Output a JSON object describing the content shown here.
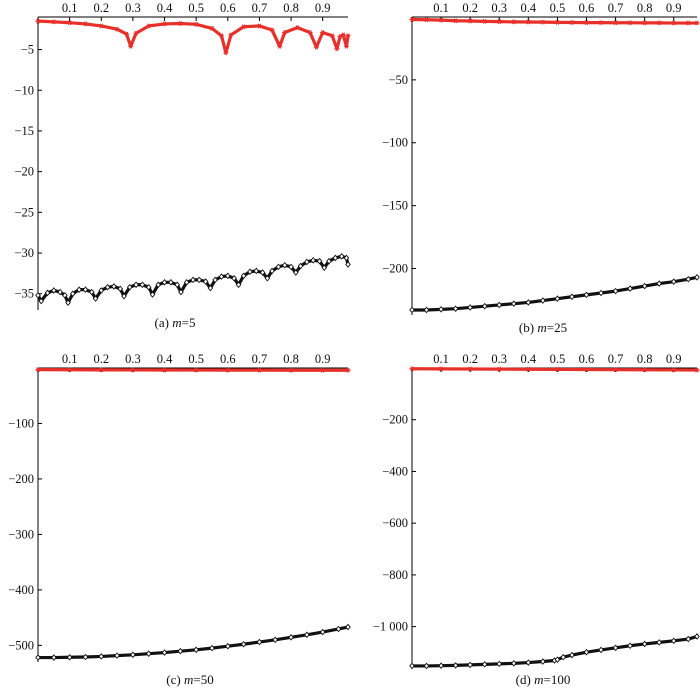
{
  "figure": {
    "colors": {
      "upper_series": "#e8302a",
      "lower_series": "#111111",
      "axis": "#000000"
    }
  },
  "chart_data": [
    {
      "type": "scatter",
      "caption_prefix": "(a) ",
      "caption_var": "m",
      "caption_value": "=5",
      "xlim": [
        0,
        0.98
      ],
      "ylim": [
        -37,
        -1
      ],
      "xticks": [
        0.1,
        0.2,
        0.3,
        0.4,
        0.5,
        0.6,
        0.7,
        0.8,
        0.9
      ],
      "xtick_labels": [
        "0.1",
        "0.2",
        "0.3",
        "0.4",
        "0.5",
        "0.6",
        "0.7",
        "0.8",
        "0.9"
      ],
      "yticks": [
        -5,
        -10,
        -15,
        -20,
        -25,
        -30,
        -35
      ],
      "ytick_labels": [
        "−5",
        "−10",
        "−15",
        "−20",
        "−25",
        "−30",
        "−35"
      ],
      "x_axis_position": "top",
      "series": [
        {
          "color": "#e8302a",
          "marker": "star",
          "points": [
            [
              0,
              -1.5
            ],
            [
              0.05,
              -1.6
            ],
            [
              0.1,
              -1.7
            ],
            [
              0.15,
              -1.85
            ],
            [
              0.2,
              -2.1
            ],
            [
              0.25,
              -2.5
            ],
            [
              0.28,
              -3.1
            ],
            [
              0.293,
              -4.6
            ],
            [
              0.31,
              -3.0
            ],
            [
              0.35,
              -2.1
            ],
            [
              0.4,
              -1.85
            ],
            [
              0.45,
              -1.8
            ],
            [
              0.5,
              -1.9
            ],
            [
              0.55,
              -2.4
            ],
            [
              0.58,
              -3.3
            ],
            [
              0.594,
              -5.4
            ],
            [
              0.61,
              -3.2
            ],
            [
              0.65,
              -2.2
            ],
            [
              0.7,
              -2.1
            ],
            [
              0.74,
              -2.6
            ],
            [
              0.764,
              -4.6
            ],
            [
              0.78,
              -2.9
            ],
            [
              0.82,
              -2.3
            ],
            [
              0.86,
              -2.9
            ],
            [
              0.88,
              -4.7
            ],
            [
              0.9,
              -2.9
            ],
            [
              0.93,
              -3.3
            ],
            [
              0.945,
              -4.9
            ],
            [
              0.955,
              -3.4
            ],
            [
              0.965,
              -3.2
            ],
            [
              0.975,
              -4.6
            ],
            [
              0.98,
              -3.3
            ]
          ]
        },
        {
          "color": "#111111",
          "marker": "diamond",
          "points": [
            [
              0,
              -35.2
            ],
            [
              0.01,
              -35.9
            ],
            [
              0.03,
              -34.9
            ],
            [
              0.05,
              -34.6
            ],
            [
              0.07,
              -34.8
            ],
            [
              0.085,
              -35.2
            ],
            [
              0.095,
              -36.1
            ],
            [
              0.11,
              -35.0
            ],
            [
              0.13,
              -34.5
            ],
            [
              0.15,
              -34.5
            ],
            [
              0.17,
              -34.8
            ],
            [
              0.182,
              -35.6
            ],
            [
              0.2,
              -34.6
            ],
            [
              0.22,
              -34.2
            ],
            [
              0.24,
              -34.1
            ],
            [
              0.26,
              -34.4
            ],
            [
              0.272,
              -35.3
            ],
            [
              0.29,
              -34.2
            ],
            [
              0.31,
              -33.9
            ],
            [
              0.33,
              -33.9
            ],
            [
              0.35,
              -34.2
            ],
            [
              0.362,
              -35.1
            ],
            [
              0.38,
              -33.9
            ],
            [
              0.4,
              -33.6
            ],
            [
              0.42,
              -33.6
            ],
            [
              0.44,
              -33.9
            ],
            [
              0.452,
              -34.8
            ],
            [
              0.47,
              -33.6
            ],
            [
              0.49,
              -33.3
            ],
            [
              0.51,
              -33.3
            ],
            [
              0.53,
              -33.5
            ],
            [
              0.545,
              -34.3
            ],
            [
              0.56,
              -33.3
            ],
            [
              0.58,
              -32.9
            ],
            [
              0.6,
              -32.8
            ],
            [
              0.62,
              -33.1
            ],
            [
              0.634,
              -33.9
            ],
            [
              0.65,
              -32.8
            ],
            [
              0.67,
              -32.3
            ],
            [
              0.69,
              -32.2
            ],
            [
              0.71,
              -32.4
            ],
            [
              0.725,
              -33.1
            ],
            [
              0.74,
              -32.2
            ],
            [
              0.76,
              -31.7
            ],
            [
              0.78,
              -31.5
            ],
            [
              0.8,
              -31.7
            ],
            [
              0.815,
              -32.4
            ],
            [
              0.83,
              -31.6
            ],
            [
              0.85,
              -31.1
            ],
            [
              0.87,
              -30.9
            ],
            [
              0.89,
              -31.0
            ],
            [
              0.905,
              -31.8
            ],
            [
              0.92,
              -31.0
            ],
            [
              0.94,
              -30.6
            ],
            [
              0.96,
              -30.4
            ],
            [
              0.975,
              -30.6
            ],
            [
              0.98,
              -31.4
            ]
          ]
        }
      ]
    },
    {
      "type": "scatter",
      "caption_prefix": "(b) ",
      "caption_var": "m",
      "caption_value": "=25",
      "xlim": [
        0,
        0.98
      ],
      "ylim": [
        -237,
        0
      ],
      "xticks": [
        0.1,
        0.2,
        0.3,
        0.4,
        0.5,
        0.6,
        0.7,
        0.8,
        0.9
      ],
      "xtick_labels": [
        "0.1",
        "0.2",
        "0.3",
        "0.4",
        "0.5",
        "0.6",
        "0.7",
        "0.8",
        "0.9"
      ],
      "yticks": [
        -50,
        -100,
        -150,
        -200
      ],
      "ytick_labels": [
        "−50",
        "−100",
        "−150",
        "−200"
      ],
      "x_axis_position": "top",
      "series": [
        {
          "color": "#e8302a",
          "marker": "star",
          "points": [
            [
              0,
              -2.0
            ],
            [
              0.05,
              -2.2
            ],
            [
              0.1,
              -2.5
            ],
            [
              0.15,
              -3.0
            ],
            [
              0.2,
              -3.2
            ],
            [
              0.25,
              -3.5
            ],
            [
              0.3,
              -3.7
            ],
            [
              0.35,
              -3.9
            ],
            [
              0.4,
              -4.0
            ],
            [
              0.45,
              -4.1
            ],
            [
              0.5,
              -4.3
            ],
            [
              0.55,
              -4.4
            ],
            [
              0.6,
              -4.5
            ],
            [
              0.65,
              -4.5
            ],
            [
              0.7,
              -4.6
            ],
            [
              0.75,
              -4.6
            ],
            [
              0.8,
              -4.7
            ],
            [
              0.85,
              -4.7
            ],
            [
              0.9,
              -4.8
            ],
            [
              0.95,
              -4.8
            ],
            [
              0.98,
              -4.8
            ]
          ]
        },
        {
          "color": "#111111",
          "marker": "diamond",
          "points": [
            [
              0,
              -233
            ],
            [
              0.05,
              -233
            ],
            [
              0.1,
              -232.5
            ],
            [
              0.15,
              -232
            ],
            [
              0.2,
              -231
            ],
            [
              0.25,
              -230
            ],
            [
              0.3,
              -229
            ],
            [
              0.35,
              -228
            ],
            [
              0.4,
              -227
            ],
            [
              0.45,
              -225.5
            ],
            [
              0.5,
              -224
            ],
            [
              0.55,
              -222.5
            ],
            [
              0.6,
              -221
            ],
            [
              0.65,
              -219.5
            ],
            [
              0.7,
              -218
            ],
            [
              0.75,
              -216
            ],
            [
              0.8,
              -214
            ],
            [
              0.85,
              -212
            ],
            [
              0.9,
              -210.5
            ],
            [
              0.95,
              -208.5
            ],
            [
              0.98,
              -207
            ]
          ]
        }
      ]
    },
    {
      "type": "scatter",
      "caption_prefix": "(c) ",
      "caption_var": "m",
      "caption_value": "=50",
      "xlim": [
        0,
        0.98
      ],
      "ylim": [
        -530,
        0
      ],
      "xticks": [
        0.1,
        0.2,
        0.3,
        0.4,
        0.5,
        0.6,
        0.7,
        0.8,
        0.9
      ],
      "xtick_labels": [
        "0.1",
        "0.2",
        "0.3",
        "0.4",
        "0.5",
        "0.6",
        "0.7",
        "0.8",
        "0.9"
      ],
      "yticks": [
        -100,
        -200,
        -300,
        -400,
        -500
      ],
      "ytick_labels": [
        "−100",
        "−200",
        "−300",
        "−400",
        "−500"
      ],
      "x_axis_position": "top",
      "series": [
        {
          "color": "#e8302a",
          "marker": "star",
          "points": [
            [
              0,
              -3.0
            ],
            [
              0.1,
              -3.2
            ],
            [
              0.2,
              -3.4
            ],
            [
              0.3,
              -3.5
            ],
            [
              0.4,
              -3.6
            ],
            [
              0.5,
              -3.7
            ],
            [
              0.6,
              -3.8
            ],
            [
              0.7,
              -3.9
            ],
            [
              0.8,
              -4.0
            ],
            [
              0.9,
              -4.0
            ],
            [
              0.98,
              -4.0
            ]
          ]
        },
        {
          "color": "#111111",
          "marker": "diamond",
          "points": [
            [
              0,
              -522
            ],
            [
              0.05,
              -522
            ],
            [
              0.1,
              -521.5
            ],
            [
              0.15,
              -521
            ],
            [
              0.2,
              -520
            ],
            [
              0.25,
              -518.5
            ],
            [
              0.3,
              -517
            ],
            [
              0.35,
              -515
            ],
            [
              0.4,
              -513
            ],
            [
              0.45,
              -510.5
            ],
            [
              0.5,
              -508
            ],
            [
              0.55,
              -505
            ],
            [
              0.6,
              -501.5
            ],
            [
              0.65,
              -498
            ],
            [
              0.7,
              -494
            ],
            [
              0.75,
              -490
            ],
            [
              0.8,
              -485.5
            ],
            [
              0.85,
              -481
            ],
            [
              0.9,
              -476
            ],
            [
              0.95,
              -470.5
            ],
            [
              0.98,
              -467
            ]
          ]
        }
      ]
    },
    {
      "type": "scatter",
      "caption_prefix": "(d) ",
      "caption_var": "m",
      "caption_value": "=100",
      "xlim": [
        0,
        0.98
      ],
      "ylim": [
        -1160,
        0
      ],
      "xticks": [
        0.1,
        0.2,
        0.3,
        0.4,
        0.5,
        0.6,
        0.7,
        0.8,
        0.9
      ],
      "xtick_labels": [
        "0.1",
        "0.2",
        "0.3",
        "0.4",
        "0.5",
        "0.6",
        "0.7",
        "0.8",
        "0.9"
      ],
      "yticks": [
        -200,
        -400,
        -600,
        -800,
        -1000
      ],
      "ytick_labels": [
        "−200",
        "−400",
        "−600",
        "−800",
        "−1 000"
      ],
      "x_axis_position": "top",
      "series": [
        {
          "color": "#e8302a",
          "marker": "star",
          "points": [
            [
              0,
              -3
            ],
            [
              0.1,
              -3.5
            ],
            [
              0.2,
              -4
            ],
            [
              0.3,
              -4.5
            ],
            [
              0.4,
              -5
            ],
            [
              0.5,
              -5.5
            ],
            [
              0.6,
              -6
            ],
            [
              0.7,
              -6.5
            ],
            [
              0.8,
              -7
            ],
            [
              0.9,
              -7.5
            ],
            [
              0.98,
              -8
            ]
          ]
        },
        {
          "color": "#111111",
          "marker": "diamond",
          "points": [
            [
              0,
              -1152
            ],
            [
              0.05,
              -1152
            ],
            [
              0.1,
              -1151
            ],
            [
              0.15,
              -1150
            ],
            [
              0.2,
              -1148
            ],
            [
              0.25,
              -1146
            ],
            [
              0.3,
              -1144
            ],
            [
              0.35,
              -1142
            ],
            [
              0.4,
              -1139
            ],
            [
              0.45,
              -1135
            ],
            [
              0.49,
              -1131
            ],
            [
              0.5,
              -1128
            ],
            [
              0.52,
              -1118
            ],
            [
              0.55,
              -1110
            ],
            [
              0.6,
              -1099
            ],
            [
              0.65,
              -1090
            ],
            [
              0.7,
              -1082
            ],
            [
              0.75,
              -1074
            ],
            [
              0.8,
              -1067
            ],
            [
              0.85,
              -1061
            ],
            [
              0.9,
              -1055
            ],
            [
              0.95,
              -1048
            ],
            [
              0.98,
              -1038
            ]
          ]
        }
      ]
    }
  ]
}
